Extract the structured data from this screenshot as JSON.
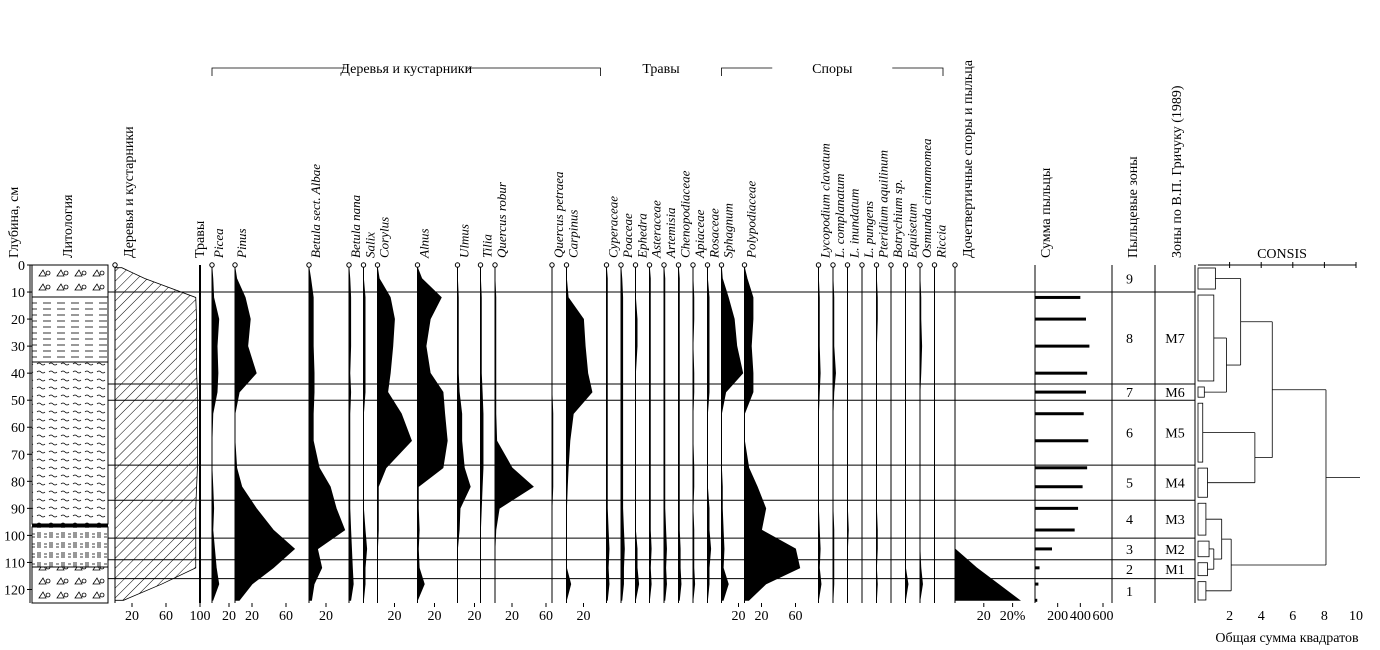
{
  "chart_data": {
    "type": "pollen",
    "depth_label": "Глубина, см",
    "lithology_label": "Литология",
    "ylim": [
      0,
      125
    ],
    "yticks": [
      0,
      10,
      20,
      30,
      40,
      50,
      60,
      70,
      80,
      90,
      100,
      110,
      120
    ],
    "depths": [
      1,
      5,
      12,
      20,
      30,
      40,
      47,
      55,
      65,
      75,
      82,
      90,
      98,
      105,
      112,
      118,
      124
    ],
    "summary": {
      "name": "Деревья и кустарники",
      "right_name": "Травы",
      "values": [
        8,
        35,
        95,
        96,
        96,
        96,
        97,
        97,
        97,
        97,
        96,
        95,
        95,
        95,
        95,
        55,
        10
      ],
      "xlim": [
        0,
        100
      ],
      "xticks": [
        20,
        60,
        100
      ]
    },
    "groups": [
      {
        "name": "Деревья и кустарники",
        "taxa": [
          {
            "name": "Picea",
            "values": [
              0,
              1,
              2,
              8,
              6,
              7,
              6,
              1,
              0,
              0,
              1,
              2,
              1,
              3,
              5,
              8,
              1
            ],
            "xlim": [
              0,
              20
            ],
            "xticks": [
              20
            ]
          },
          {
            "name": "Pinus",
            "values": [
              0,
              2,
              12,
              18,
              15,
              25,
              5,
              0,
              0,
              2,
              8,
              25,
              45,
              70,
              45,
              20,
              5
            ],
            "xlim": [
              0,
              80
            ],
            "xticks": [
              20,
              60
            ]
          },
          {
            "name": "Betula sect. Albae",
            "values": [
              0,
              2,
              5,
              5,
              5,
              6,
              6,
              5,
              5,
              12,
              25,
              32,
              42,
              10,
              15,
              6,
              3
            ],
            "xlim": [
              0,
              40
            ],
            "xticks": [
              20
            ]
          },
          {
            "name": "Betula nana",
            "values": [
              0,
              1,
              2,
              2,
              2,
              1,
              2,
              1,
              1,
              1,
              1,
              1,
              2,
              3,
              4,
              5,
              2
            ],
            "xlim": [
              0,
              10
            ],
            "xticks": []
          },
          {
            "name": "Salix",
            "values": [
              0,
              0,
              1,
              1,
              1,
              1,
              1,
              0,
              0,
              0,
              0,
              0,
              1,
              2,
              1,
              1,
              0
            ],
            "xlim": [
              0,
              5
            ],
            "xticks": []
          },
          {
            "name": "Corylus",
            "values": [
              0,
              2,
              15,
              20,
              18,
              15,
              12,
              28,
              40,
              10,
              1,
              1,
              1,
              0,
              0,
              0,
              0
            ],
            "xlim": [
              0,
              40
            ],
            "xticks": [
              20
            ]
          },
          {
            "name": "Alnus",
            "values": [
              0,
              5,
              28,
              15,
              10,
              15,
              30,
              32,
              35,
              30,
              1,
              1,
              2,
              1,
              2,
              8,
              0
            ],
            "xlim": [
              0,
              40
            ],
            "xticks": [
              20
            ]
          },
          {
            "name": "Ulmus",
            "values": [
              0,
              0,
              1,
              1,
              1,
              1,
              2,
              5,
              5,
              8,
              15,
              3,
              2,
              0,
              0,
              0,
              0
            ],
            "xlim": [
              0,
              20
            ],
            "xticks": [
              20
            ]
          },
          {
            "name": "Tilia",
            "values": [
              0,
              0,
              1,
              1,
              1,
              1,
              2,
              3,
              3,
              3,
              2,
              1,
              0,
              0,
              0,
              0,
              0
            ],
            "xlim": [
              0,
              10
            ],
            "xticks": []
          },
          {
            "name": "Quercus robur",
            "values": [
              0,
              0,
              1,
              1,
              1,
              1,
              1,
              1,
              2,
              20,
              45,
              5,
              1,
              0,
              0,
              0,
              0
            ],
            "xlim": [
              0,
              60
            ],
            "xticks": [
              20,
              60
            ]
          },
          {
            "name": "Quercus petraea",
            "values": [
              0,
              0,
              0,
              0,
              0,
              0,
              0,
              1,
              1,
              1,
              1,
              0,
              0,
              0,
              0,
              0,
              0
            ],
            "xlim": [
              0,
              10
            ],
            "xticks": []
          },
          {
            "name": "Carpinus",
            "values": [
              0,
              0,
              2,
              20,
              22,
              25,
              30,
              8,
              4,
              2,
              1,
              0,
              0,
              0,
              0,
              5,
              0
            ],
            "xlim": [
              0,
              40
            ],
            "xticks": [
              20
            ]
          }
        ]
      },
      {
        "name": "Травы",
        "taxa": [
          {
            "name": "Cyperaceae",
            "values": [
              0,
              1,
              1,
              1,
              1,
              1,
              1,
              1,
              1,
              1,
              1,
              1,
              2,
              3,
              2,
              3,
              1
            ],
            "xlim": [
              0,
              10
            ],
            "xticks": []
          },
          {
            "name": "Poaceae",
            "values": [
              0,
              1,
              2,
              2,
              2,
              2,
              2,
              2,
              2,
              2,
              2,
              2,
              3,
              4,
              3,
              3,
              1
            ],
            "xlim": [
              0,
              10
            ],
            "xticks": []
          },
          {
            "name": "Ephedra",
            "values": [
              0,
              0,
              0,
              1,
              1,
              0,
              0,
              0,
              0,
              0,
              0,
              0,
              0,
              1,
              1,
              2,
              0
            ],
            "xlim": [
              0,
              5
            ],
            "xticks": []
          },
          {
            "name": "Asteraceae",
            "values": [
              0,
              1,
              1,
              1,
              1,
              1,
              1,
              1,
              1,
              1,
              1,
              1,
              1,
              2,
              1,
              2,
              0
            ],
            "xlim": [
              0,
              10
            ],
            "xticks": []
          },
          {
            "name": "Artemisia",
            "values": [
              0,
              1,
              1,
              1,
              1,
              1,
              1,
              1,
              1,
              1,
              1,
              1,
              2,
              3,
              2,
              3,
              1
            ],
            "xlim": [
              0,
              10
            ],
            "xticks": []
          },
          {
            "name": "Chenopodiaceae",
            "values": [
              0,
              1,
              1,
              1,
              1,
              1,
              1,
              1,
              1,
              1,
              1,
              1,
              1,
              2,
              2,
              3,
              1
            ],
            "xlim": [
              0,
              10
            ],
            "xticks": []
          },
          {
            "name": "Apiaceae",
            "values": [
              0,
              0,
              1,
              1,
              0,
              1,
              1,
              0,
              0,
              1,
              1,
              0,
              1,
              1,
              1,
              2,
              0
            ],
            "xlim": [
              0,
              10
            ],
            "xticks": []
          },
          {
            "name": "Rosaceae",
            "values": [
              0,
              0,
              1,
              1,
              1,
              1,
              1,
              0,
              0,
              0,
              0,
              1,
              1,
              2,
              1,
              1,
              0
            ],
            "xlim": [
              0,
              5
            ],
            "xticks": []
          }
        ]
      },
      {
        "name": "Споры",
        "taxa": [
          {
            "name": "Sphagnum",
            "values": [
              0,
              1,
              8,
              15,
              18,
              25,
              5,
              0,
              0,
              0,
              1,
              1,
              2,
              3,
              2,
              8,
              2
            ],
            "xlim": [
              0,
              20
            ],
            "xticks": [
              20
            ]
          },
          {
            "name": "Polypodiaceae",
            "values": [
              0,
              3,
              10,
              10,
              8,
              10,
              10,
              0,
              0,
              5,
              15,
              25,
              20,
              60,
              65,
              25,
              5
            ],
            "xlim": [
              0,
              80
            ],
            "xticks": [
              20,
              60
            ]
          },
          {
            "name": "Lycopodium clavatum",
            "values": [
              0,
              0,
              1,
              1,
              1,
              2,
              1,
              0,
              0,
              0,
              0,
              0,
              1,
              2,
              1,
              3,
              0
            ],
            "xlim": [
              0,
              10
            ],
            "xticks": []
          },
          {
            "name": "L. complanatum",
            "values": [
              0,
              0,
              1,
              1,
              1,
              3,
              1,
              0,
              0,
              0,
              0,
              0,
              1,
              1,
              1,
              1,
              0
            ],
            "xlim": [
              0,
              10
            ],
            "xticks": []
          },
          {
            "name": "L. inundatum",
            "values": [
              0,
              0,
              0,
              0,
              0,
              0,
              0,
              0,
              0,
              0,
              0,
              0,
              1,
              0,
              0,
              0,
              0
            ],
            "xlim": [
              0,
              10
            ],
            "xticks": []
          },
          {
            "name": "L. pungens",
            "values": [
              0,
              0,
              0,
              0,
              0,
              0,
              0,
              0,
              0,
              0,
              0,
              0,
              0,
              0,
              0,
              0,
              0
            ],
            "xlim": [
              0,
              10
            ],
            "xticks": []
          },
          {
            "name": "Pteridium aquilinum",
            "values": [
              0,
              0,
              1,
              1,
              0,
              0,
              0,
              0,
              0,
              0,
              0,
              0,
              1,
              1,
              0,
              1,
              0
            ],
            "xlim": [
              0,
              10
            ],
            "xticks": []
          },
          {
            "name": "Botrychium sp.",
            "values": [
              0,
              0,
              0,
              0,
              0,
              0,
              0,
              0,
              0,
              0,
              0,
              0,
              0,
              0,
              0,
              0,
              0
            ],
            "xlim": [
              0,
              10
            ],
            "xticks": []
          },
          {
            "name": "Equisetum",
            "values": [
              0,
              0,
              0,
              0,
              0,
              0,
              0,
              0,
              0,
              0,
              0,
              0,
              0,
              0,
              0,
              3,
              0
            ],
            "xlim": [
              0,
              10
            ],
            "xticks": []
          },
          {
            "name": "Osmunda cinnamomea",
            "values": [
              0,
              0,
              1,
              1,
              2,
              1,
              0,
              0,
              0,
              0,
              0,
              0,
              0,
              0,
              1,
              3,
              0
            ],
            "xlim": [
              0,
              10
            ],
            "xticks": []
          },
          {
            "name": "Riccia",
            "values": [
              0,
              0,
              0,
              0,
              0,
              0,
              0,
              0,
              0,
              0,
              0,
              0,
              0,
              0,
              0,
              0,
              0
            ],
            "xlim": [
              0,
              10
            ],
            "xticks": []
          }
        ]
      }
    ],
    "pre_quaternary": {
      "name": "Дочетвертичные споры и пыльца",
      "values": [
        0,
        0,
        0,
        0,
        0,
        0,
        0,
        0,
        0,
        0,
        0,
        0,
        0,
        0,
        15,
        30,
        45
      ],
      "xlim": [
        0,
        50
      ],
      "xticks": [
        20,
        {
          "value": 40,
          "label": "20%"
        }
      ]
    },
    "pollen_sum": {
      "name": "Сумма пыльцы",
      "values": [
        null,
        null,
        400,
        450,
        480,
        460,
        450,
        430,
        470,
        460,
        420,
        380,
        350,
        150,
        40,
        30,
        20
      ],
      "xlim": [
        0,
        600
      ],
      "xticks": [
        200,
        400,
        600
      ]
    },
    "zones_label": "Пыльцевые зоны",
    "gricuk_label": "Зоны по В.П. Гричуку (1989)",
    "zones": [
      {
        "label": "9",
        "top": 0,
        "bottom": 10,
        "cluster_height": 1.1
      },
      {
        "label": "8",
        "gricuk": "M7",
        "top": 10,
        "bottom": 44,
        "cluster_height": 1.0
      },
      {
        "label": "7",
        "gricuk": "M6",
        "top": 44,
        "bottom": 50,
        "cluster_height": 0.4
      },
      {
        "label": "6",
        "gricuk": "M5",
        "top": 50,
        "bottom": 74,
        "cluster_height": 0.3
      },
      {
        "label": "5",
        "gricuk": "M4",
        "top": 74,
        "bottom": 87,
        "cluster_height": 0.6
      },
      {
        "label": "4",
        "gricuk": "M3",
        "top": 87,
        "bottom": 101,
        "cluster_height": 0.5
      },
      {
        "label": "3",
        "gricuk": "M2",
        "top": 101,
        "bottom": 109,
        "cluster_height": 0.7
      },
      {
        "label": "2",
        "gricuk": "M1",
        "top": 109,
        "bottom": 116,
        "cluster_height": 0.6
      },
      {
        "label": "1",
        "top": 116,
        "bottom": 125,
        "cluster_height": 0.5
      }
    ],
    "dendrogram": {
      "title": "CONSIS",
      "x_label": "Общая сумма квадратов",
      "xlim": [
        0,
        10
      ],
      "xticks": [
        2,
        4,
        6,
        8,
        10
      ],
      "merges": [
        {
          "members": [
            1,
            2
          ],
          "height": 1.8
        },
        {
          "members": [
            0,
            1
          ],
          "height": 2.7
        },
        {
          "members": [
            3,
            4
          ],
          "height": 3.6
        },
        {
          "members": [
            0,
            3
          ],
          "height": 4.7
        },
        {
          "members": [
            6,
            7
          ],
          "height": 1.0
        },
        {
          "members": [
            5,
            6
          ],
          "height": 1.5
        },
        {
          "members": [
            5,
            8
          ],
          "height": 2.1
        },
        {
          "members": [
            0,
            5
          ],
          "height": 8.1
        }
      ]
    }
  }
}
